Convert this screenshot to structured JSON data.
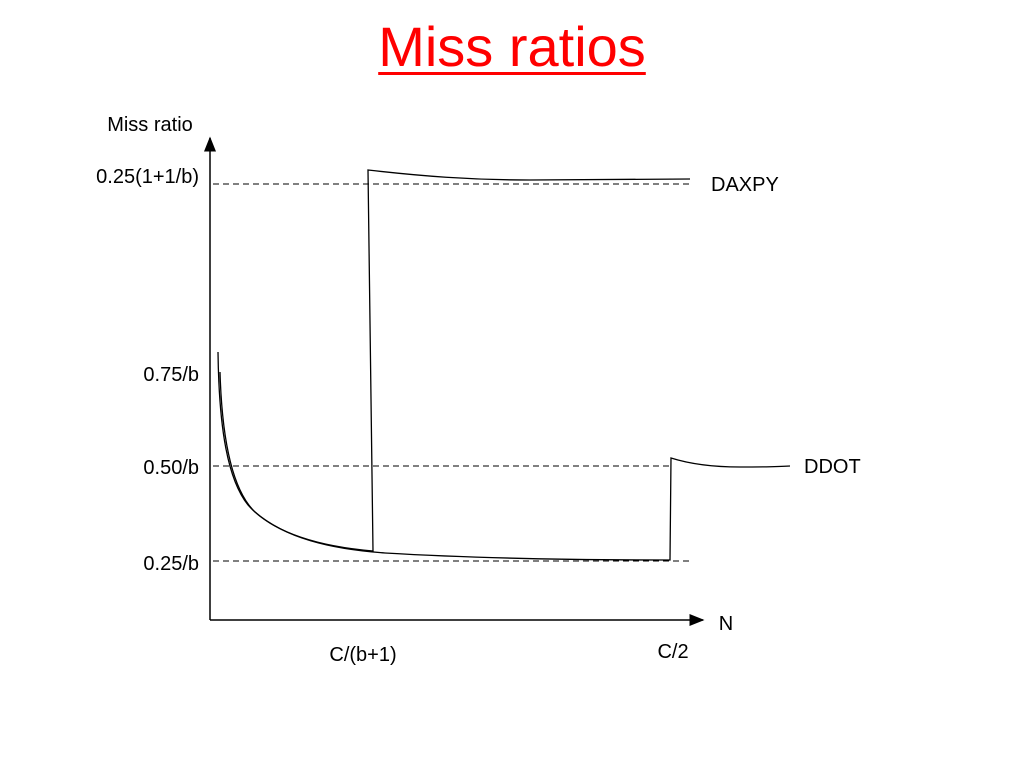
{
  "title": "Miss ratios",
  "colors": {
    "title": "#ff0000",
    "lines": "#000000",
    "background": "#ffffff"
  },
  "chart_data": {
    "type": "line",
    "ylabel": "Miss ratio",
    "xlabel": "N",
    "ytick_labels": [
      "0.25/b",
      "0.50/b",
      "0.75/b",
      "0.25(1+1/b)"
    ],
    "xtick_labels": [
      "C/(b+1)",
      "C/2"
    ],
    "reference_lines": [
      {
        "label": "0.25(1+1/b)",
        "style": "dashed"
      },
      {
        "label": "0.50/b",
        "style": "dashed"
      },
      {
        "label": "0.25/b",
        "style": "dashed"
      }
    ],
    "series": [
      {
        "name": "DAXPY"
      },
      {
        "name": "DDOT"
      }
    ],
    "grid": false,
    "legend": "none"
  }
}
